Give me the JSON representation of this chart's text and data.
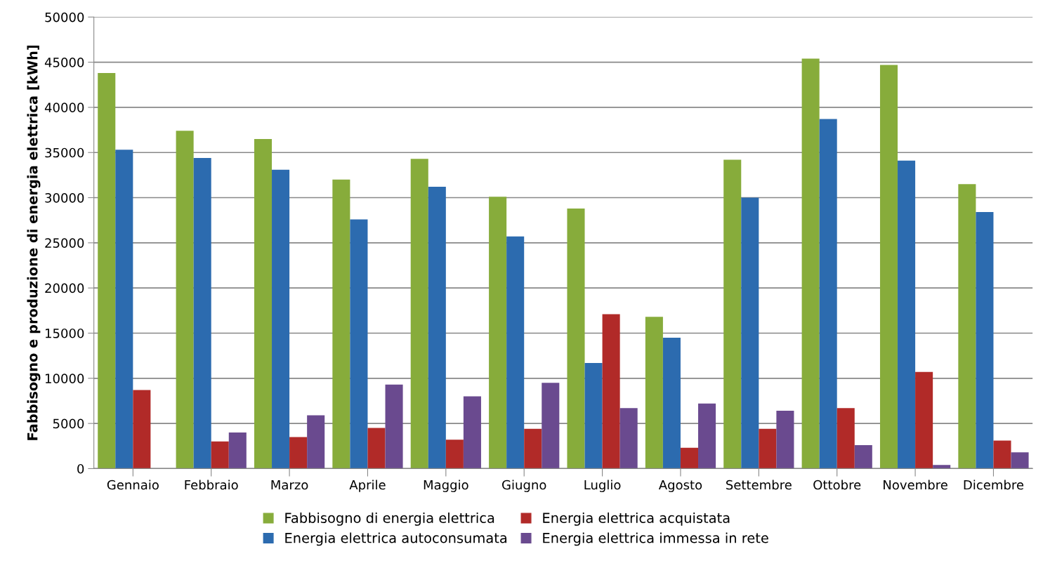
{
  "chart_data": {
    "type": "bar",
    "ylabel": "Fabbisogno e produzione di energia elettrica [kWh]",
    "categories": [
      "Gennaio",
      "Febbraio",
      "Marzo",
      "Aprile",
      "Maggio",
      "Giugno",
      "Luglio",
      "Agosto",
      "Settembre",
      "Ottobre",
      "Novembre",
      "Dicembre"
    ],
    "series": [
      {
        "name": "Fabbisogno di energia elettrica",
        "color": "#87ac3b",
        "values": [
          43800,
          37400,
          36500,
          32000,
          34300,
          30100,
          28800,
          16800,
          34200,
          45400,
          44700,
          31500
        ]
      },
      {
        "name": "Energia elettrica autoconsumata",
        "color": "#2c6baf",
        "values": [
          35300,
          34400,
          33100,
          27600,
          31200,
          25700,
          11700,
          14500,
          30000,
          38700,
          34100,
          28400
        ]
      },
      {
        "name": "Energia elettrica acquistata",
        "color": "#b12a28",
        "values": [
          8700,
          3000,
          3500,
          4500,
          3200,
          4400,
          17100,
          2300,
          4400,
          6700,
          10700,
          3100
        ]
      },
      {
        "name": "Energia elettrica immessa in rete",
        "color": "#6a4a8f",
        "values": [
          0,
          4000,
          5900,
          9300,
          8000,
          9500,
          6700,
          7200,
          6400,
          2600,
          400,
          1800
        ]
      }
    ],
    "ylim": [
      0,
      50000
    ],
    "yticks": [
      0,
      5000,
      10000,
      15000,
      20000,
      25000,
      30000,
      35000,
      40000,
      45000,
      50000
    ],
    "grid": "y",
    "legend": "bottom"
  }
}
